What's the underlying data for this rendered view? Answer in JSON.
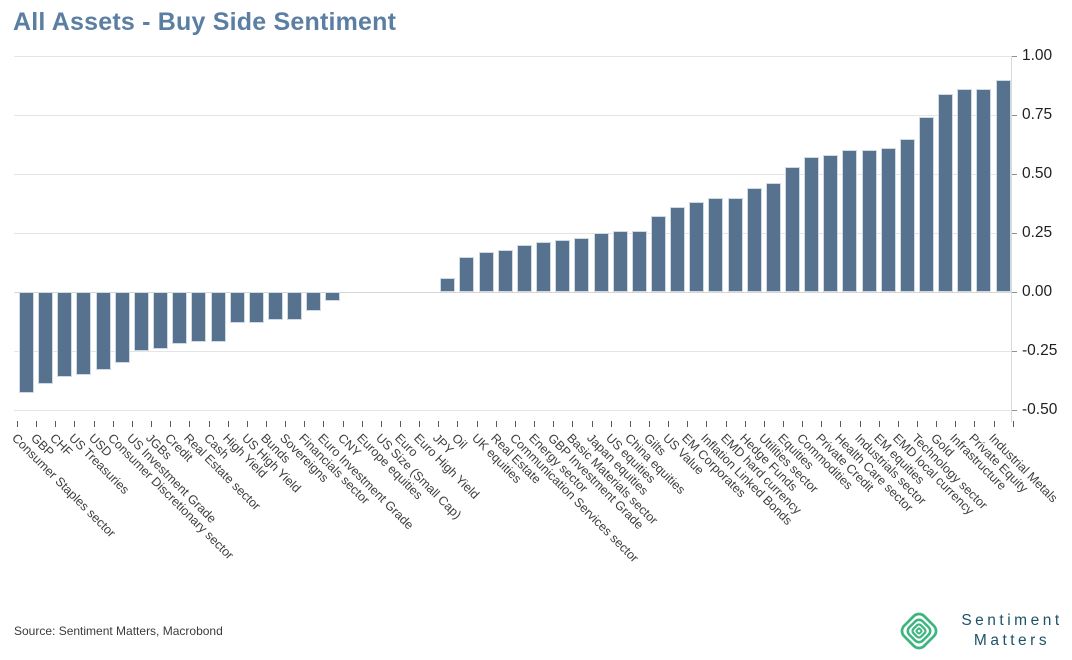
{
  "title": "All Assets - Buy Side Sentiment",
  "source": "Source: Sentiment Matters, Macrobond",
  "logo": {
    "icon": "concentric-diamonds-icon",
    "line1": "Sentiment",
    "line2": "Matters",
    "icon_color": "#3cb57e",
    "text_color": "#1d5268"
  },
  "colors": {
    "bar": "#56728E",
    "bar_border": "#cfdae4",
    "title": "#5b7ea3",
    "grid": "#e4e4e4",
    "zero_line": "#d6d6d6",
    "axis_text": "#1f1f1f",
    "x_label_text": "#3e3e3e"
  },
  "chart_data": {
    "type": "bar",
    "title": "All Assets - Buy Side Sentiment",
    "xlabel": "",
    "ylabel": "",
    "ylim": [
      -0.5,
      1.0
    ],
    "grid": true,
    "legend_position": "none",
    "yticks": [
      1.0,
      0.75,
      0.5,
      0.25,
      0.0,
      -0.25,
      -0.5
    ],
    "ytick_labels": [
      "1.00",
      "0.75",
      "0.50",
      "0.25",
      "0.00",
      "-0.25",
      "-0.50"
    ],
    "categories": [
      "Consumer Staples sector",
      "GBP",
      "CHF",
      "US Treasuries",
      "USD",
      "Consumer Discretionary sector",
      "US Investment Grade",
      "JGBs",
      "Credit",
      "Real Estate sector",
      "Cash",
      "High Yield",
      "US High Yield",
      "Bunds",
      "Sovereigns",
      "Financials sector",
      "Euro Investment Grade",
      "CNY",
      "Europe equities",
      "US Size (Small Cap)",
      "Euro",
      "Euro High Yield",
      "JPY",
      "Oil",
      "UK equities",
      "Real Estate",
      "Communication Services sector",
      "Energy sector",
      "GBP Investment Grade",
      "Basic Materials sector",
      "Japan equities",
      "US equities",
      "China equities",
      "Gilts",
      "US Value",
      "EM Corporates",
      "Inflation Linked Bonds",
      "EMD hard currency",
      "Hedge Funds",
      "Utilities sector",
      "Equities",
      "Commodities",
      "Private Credit",
      "Health Care sector",
      "Industrials sector",
      "EM equities",
      "EMD local currency",
      "Technology sector",
      "Gold",
      "Infrastructure",
      "Private Equity",
      "Industrial Metals"
    ],
    "values": [
      -0.43,
      -0.39,
      -0.36,
      -0.35,
      -0.33,
      -0.3,
      -0.25,
      -0.24,
      -0.22,
      -0.21,
      -0.21,
      -0.13,
      -0.13,
      -0.12,
      -0.12,
      -0.08,
      -0.04,
      0.0,
      0.0,
      0.0,
      0.0,
      0.0,
      0.06,
      0.15,
      0.17,
      0.18,
      0.2,
      0.21,
      0.22,
      0.23,
      0.25,
      0.26,
      0.26,
      0.32,
      0.36,
      0.38,
      0.4,
      0.4,
      0.44,
      0.46,
      0.53,
      0.57,
      0.58,
      0.6,
      0.6,
      0.61,
      0.65,
      0.74,
      0.84,
      0.86,
      0.86,
      0.9
    ]
  }
}
